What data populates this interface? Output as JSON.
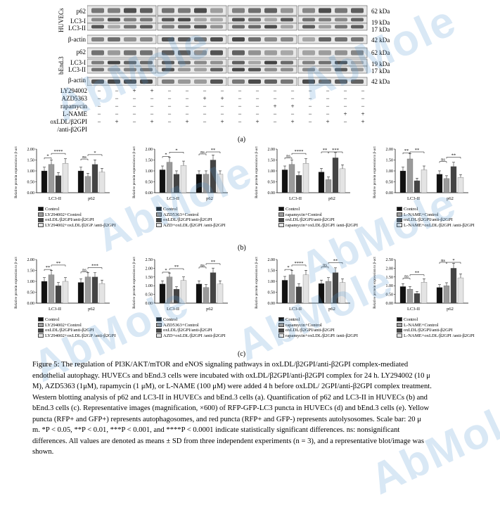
{
  "blots": {
    "huvec_label": "HUVECs",
    "bend3_label": "bEnd.3",
    "rows_left": [
      "p62",
      "LC3-I",
      "LC3-II",
      "β-actin",
      "p62",
      "LC3-I",
      "LC3-II",
      "β-actin"
    ],
    "kda_right": [
      "62 kDa",
      "19 kDa",
      "17 kDa",
      "42 kDa",
      "62 kDa",
      "19 kDa",
      "17 kDa",
      "42 kDa"
    ],
    "treatments": [
      {
        "name": "LY294002",
        "signs": [
          "−",
          "−",
          "+",
          "+",
          "−",
          "−",
          "−",
          "−",
          "−",
          "−",
          "−",
          "−",
          "−",
          "−",
          "−",
          "−"
        ]
      },
      {
        "name": "AZD5363",
        "signs": [
          "−",
          "−",
          "−",
          "−",
          "−",
          "−",
          "+",
          "+",
          "−",
          "−",
          "−",
          "−",
          "−",
          "−",
          "−",
          "−"
        ]
      },
      {
        "name": "rapamycin",
        "signs": [
          "−",
          "−",
          "−",
          "−",
          "−",
          "−",
          "−",
          "−",
          "−",
          "−",
          "+",
          "+",
          "−",
          "−",
          "−",
          "−"
        ]
      },
      {
        "name": "L-NAME",
        "signs": [
          "−",
          "−",
          "−",
          "−",
          "−",
          "−",
          "−",
          "−",
          "−",
          "−",
          "−",
          "−",
          "−",
          "−",
          "+",
          "+"
        ]
      },
      {
        "name": "oxLDL/β2GPI",
        "signs": [
          "−",
          "+",
          "−",
          "+",
          "−",
          "+",
          "−",
          "+",
          "−",
          "+",
          "−",
          "+",
          "−",
          "+",
          "−",
          "+"
        ]
      },
      {
        "name": "/anti-β2GPI",
        "signs": []
      }
    ],
    "panel_label": "(a)"
  },
  "panel_b_label": "(b)",
  "panel_c_label": "(c)",
  "chart_data": [
    {
      "type": "bar",
      "panel": "b",
      "ylabel": "Relative protein expression to β-actin",
      "categories": [
        "LC3-II",
        "p62"
      ],
      "ylim": [
        0,
        2.0
      ],
      "yticks": [
        "0.00",
        "0.50",
        "1.00",
        "1.50",
        "2.00"
      ],
      "series": [
        {
          "name": "Control",
          "values": [
            1.0,
            1.0
          ]
        },
        {
          "name": "LY294002+Control",
          "values": [
            1.3,
            0.75
          ]
        },
        {
          "name": "oxLDL/β2GPI/anti-β2GPI",
          "values": [
            0.78,
            1.3
          ]
        },
        {
          "name": "LY294002+oxLDL/β2GP /anti-β2GPI",
          "values": [
            1.35,
            0.95
          ]
        }
      ],
      "significance": [
        "*",
        "****",
        "ns",
        "*"
      ]
    },
    {
      "type": "bar",
      "panel": "b",
      "ylabel": "Relative protein expression to β-actin",
      "categories": [
        "LC3-II",
        "p62"
      ],
      "ylim": [
        0,
        2.0
      ],
      "yticks": [
        "0.00",
        "0.50",
        "1.00",
        "1.50",
        "2.00"
      ],
      "series": [
        {
          "name": "Control",
          "values": [
            1.05,
            0.85
          ]
        },
        {
          "name": "AZD5363+Control",
          "values": [
            1.4,
            0.85
          ]
        },
        {
          "name": "oxLDL/β2GPI/anti-β2GPI",
          "values": [
            0.85,
            1.5
          ]
        },
        {
          "name": "AZD+oxLDL/β2GPI /anti-β2GPI",
          "values": [
            1.25,
            0.85
          ]
        }
      ],
      "significance": [
        "*",
        "*",
        "ns",
        "**"
      ]
    },
    {
      "type": "bar",
      "panel": "b",
      "ylabel": "Relative protein expression to β-actin",
      "categories": [
        "LC3-II",
        "p62"
      ],
      "ylim": [
        0,
        2.0
      ],
      "yticks": [
        "0.00",
        "0.50",
        "1.00",
        "1.50",
        "2.00"
      ],
      "series": [
        {
          "name": "Control",
          "values": [
            1.05,
            0.95
          ]
        },
        {
          "name": "rapamycin+Control",
          "values": [
            1.3,
            0.6
          ]
        },
        {
          "name": "oxLDL/β2GPI/anti-β2GPI",
          "values": [
            0.8,
            1.6
          ]
        },
        {
          "name": "rapamycin+oxLDL/β2GPI /anti-β2GPI",
          "values": [
            1.35,
            1.1
          ]
        }
      ],
      "significance": [
        "ns",
        "****",
        "**",
        "***"
      ]
    },
    {
      "type": "bar",
      "panel": "b",
      "ylabel": "Relative protein expression to β-actin",
      "categories": [
        "LC3-II",
        "p62"
      ],
      "ylim": [
        0,
        2.0
      ],
      "yticks": [
        "0.00",
        "0.50",
        "1.00",
        "1.50",
        "2.00"
      ],
      "series": [
        {
          "name": "Control",
          "values": [
            1.0,
            0.85
          ]
        },
        {
          "name": "L-NAME+Control",
          "values": [
            1.55,
            0.65
          ]
        },
        {
          "name": "oxLDL/β2GPI/anti-β2GPI",
          "values": [
            0.55,
            1.2
          ]
        },
        {
          "name": "L-NAME+oxLDL/β2GPI /anti-β2GPI",
          "values": [
            1.05,
            0.7
          ]
        }
      ],
      "significance": [
        "**",
        "**",
        "ns",
        "**"
      ]
    },
    {
      "type": "bar",
      "panel": "c",
      "ylabel": "Relative protein expression to β-actin",
      "categories": [
        "LC3-II",
        "p62"
      ],
      "ylim": [
        0,
        2.0
      ],
      "yticks": [
        "0.00",
        "0.50",
        "1.00",
        "1.50",
        "2.00"
      ],
      "series": [
        {
          "name": "Control",
          "values": [
            1.0,
            0.95
          ]
        },
        {
          "name": "LY294002+Control",
          "values": [
            1.3,
            1.2
          ]
        },
        {
          "name": "oxLDL/β2GPI/anti-β2GPI",
          "values": [
            0.8,
            1.2
          ]
        },
        {
          "name": "LY294002+oxLDL/β2GP /anti-β2GPI",
          "values": [
            1.0,
            0.9
          ]
        }
      ],
      "significance": [
        "**",
        "**",
        "ns",
        "***"
      ]
    },
    {
      "type": "bar",
      "panel": "c",
      "ylabel": "Relative protein expression to β-actin",
      "categories": [
        "LC3-II",
        "p62"
      ],
      "ylim": [
        0,
        2.5
      ],
      "yticks": [
        "0.00",
        "0.50",
        "1.00",
        "1.50",
        "2.00",
        "2.50"
      ],
      "series": [
        {
          "name": "Control",
          "values": [
            1.1,
            1.1
          ]
        },
        {
          "name": "AZD5363+Control",
          "values": [
            1.5,
            0.9
          ]
        },
        {
          "name": "oxLDL/β2GPI/anti-β2GPI",
          "values": [
            0.8,
            1.75
          ]
        },
        {
          "name": "AZD+oxLDL/β2GPI /anti-β2GPI",
          "values": [
            1.3,
            1.1
          ]
        }
      ],
      "significance": [
        "*",
        "**",
        "ns",
        "**"
      ]
    },
    {
      "type": "bar",
      "panel": "c",
      "ylabel": "Relative protein expression to β-actin",
      "categories": [
        "LC3-II",
        "p62"
      ],
      "ylim": [
        0,
        2.0
      ],
      "yticks": [
        "0.00",
        "0.50",
        "1.00",
        "1.50",
        "2.00"
      ],
      "series": [
        {
          "name": "Control",
          "values": [
            1.05,
            0.9
          ]
        },
        {
          "name": "rapamycin+Control",
          "values": [
            1.3,
            1.0
          ]
        },
        {
          "name": "oxLDL/β2GPI/anti-β2GPI",
          "values": [
            0.75,
            1.4
          ]
        },
        {
          "name": "rapamycin+oxLDL/β2GPI /anti-β2GPI",
          "values": [
            1.3,
            0.95
          ]
        }
      ],
      "significance": [
        "*",
        "****",
        "ns",
        "**"
      ]
    },
    {
      "type": "bar",
      "panel": "c",
      "ylabel": "Relative protein expression to β-actin",
      "categories": [
        "LC3-II",
        "p62"
      ],
      "ylim": [
        0,
        2.5
      ],
      "yticks": [
        "0.00",
        "0.50",
        "1.00",
        "1.50",
        "2.00",
        "2.50"
      ],
      "series": [
        {
          "name": "Control",
          "values": [
            0.95,
            0.9
          ]
        },
        {
          "name": "L-NAME+Control",
          "values": [
            0.8,
            1.0
          ]
        },
        {
          "name": "oxLDL/β2GPI/anti-β2GPI",
          "values": [
            0.55,
            2.0
          ]
        },
        {
          "name": "L-NAME+oxLDL/β2GPI /anti-β2GPI",
          "values": [
            1.2,
            1.45
          ]
        }
      ],
      "significance": [
        "ns",
        "**",
        "ns",
        "*"
      ]
    }
  ],
  "legend_colors": [
    "#111111",
    "#9a9a9a",
    "#444444",
    "#e4e4e4"
  ],
  "watermark_text": "AbMole",
  "caption": {
    "line1": "Figure 5: The regulation of PI3K/AKT/mTOR and eNOS signaling pathways in oxLDL/β2GPI/anti-β2GPI complex-mediated",
    "line2": "endothelial autophagy. HUVECs and bEnd.3 cells were incubated with oxLDL/β2GPI/anti-β2GPI complex for 24 h. LY294002 (10 μ",
    "line3": "M), AZD5363 (1μM), rapamycin (1 μM), or L-NAME (100 μM) were added 4 h before oxLDL/ 2GPI/anti-β2GPI complex treatment.",
    "line4": "Western blotting analysis of p62 and LC3-II in HUVECs and bEnd.3 cells (a). Quantification of p62 and LC3-II in HUVECs (b) and",
    "line5": "bEnd.3 cells (c). Representative images (magnification, ×600) of RFP-GFP-LC3 puncta in HUVECs (d) and bEnd.3 cells (e). Yellow",
    "line6": "puncta (RFP+ and GFP+) represents autophagosomes, and red puncta (RFP+ and GFP-) represents autolysosomes. Scale bar: 20 μ",
    "line7": "m. *P < 0.05, **P < 0.01, ***P < 0.001, and ****P < 0.0001 indicate statistically significant differences. ns: nonsignificant",
    "line8": "differences. All values are denoted as means ± SD from three independent experiments (n = 3), and a representative blot/image was",
    "line9": "shown."
  }
}
